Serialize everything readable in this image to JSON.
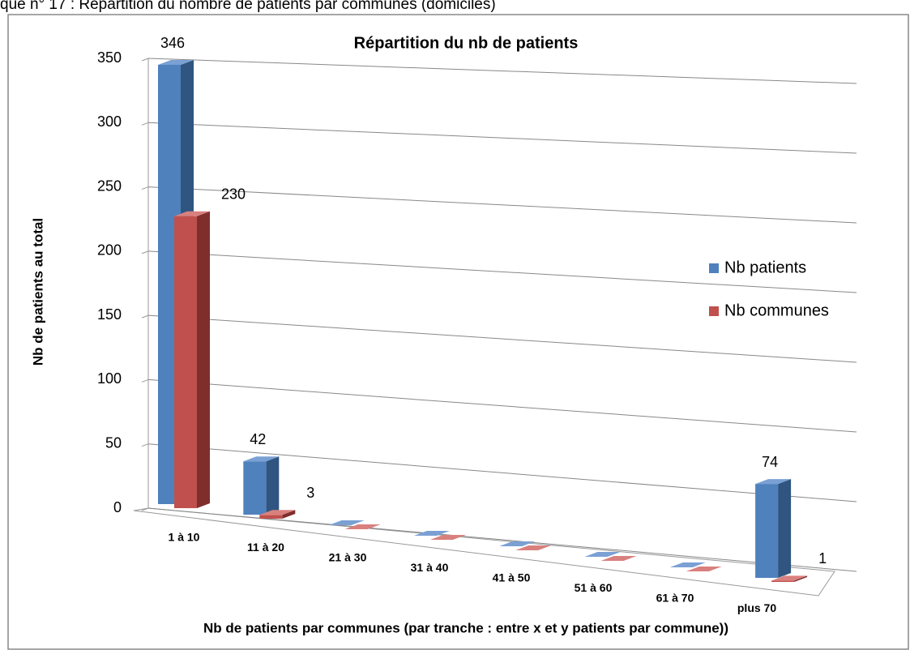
{
  "caption": "que n° 17 : Répartition du nombre de patients par communes (domiciles)",
  "chart_data": {
    "type": "bar3d",
    "title": "Répartition du nb de patients",
    "x_label": "Nb de patients par communes (par tranche : entre x et y patients par commune))",
    "y_label": "Nb de patients au total",
    "categories": [
      "1 à 10",
      "11 à 20",
      "21 à 30",
      "31 à 40",
      "41 à 50",
      "51 à 60",
      "61 à 70",
      "plus 70"
    ],
    "series": [
      {
        "name": "Nb patients",
        "color": "#4f81bd",
        "side": "#2f5580",
        "top": "#7aa0d4",
        "values": [
          346,
          42,
          0,
          0,
          0,
          0,
          0,
          74
        ]
      },
      {
        "name": "Nb communes",
        "color": "#c0504d",
        "side": "#7f2e2c",
        "top": "#d9807e",
        "values": [
          230,
          3,
          0,
          0,
          0,
          0,
          0,
          1
        ]
      }
    ],
    "ylim": [
      0,
      350
    ],
    "yticks": [
      0,
      50,
      100,
      150,
      200,
      250,
      300,
      350
    ],
    "grid": true,
    "legend": "right"
  }
}
